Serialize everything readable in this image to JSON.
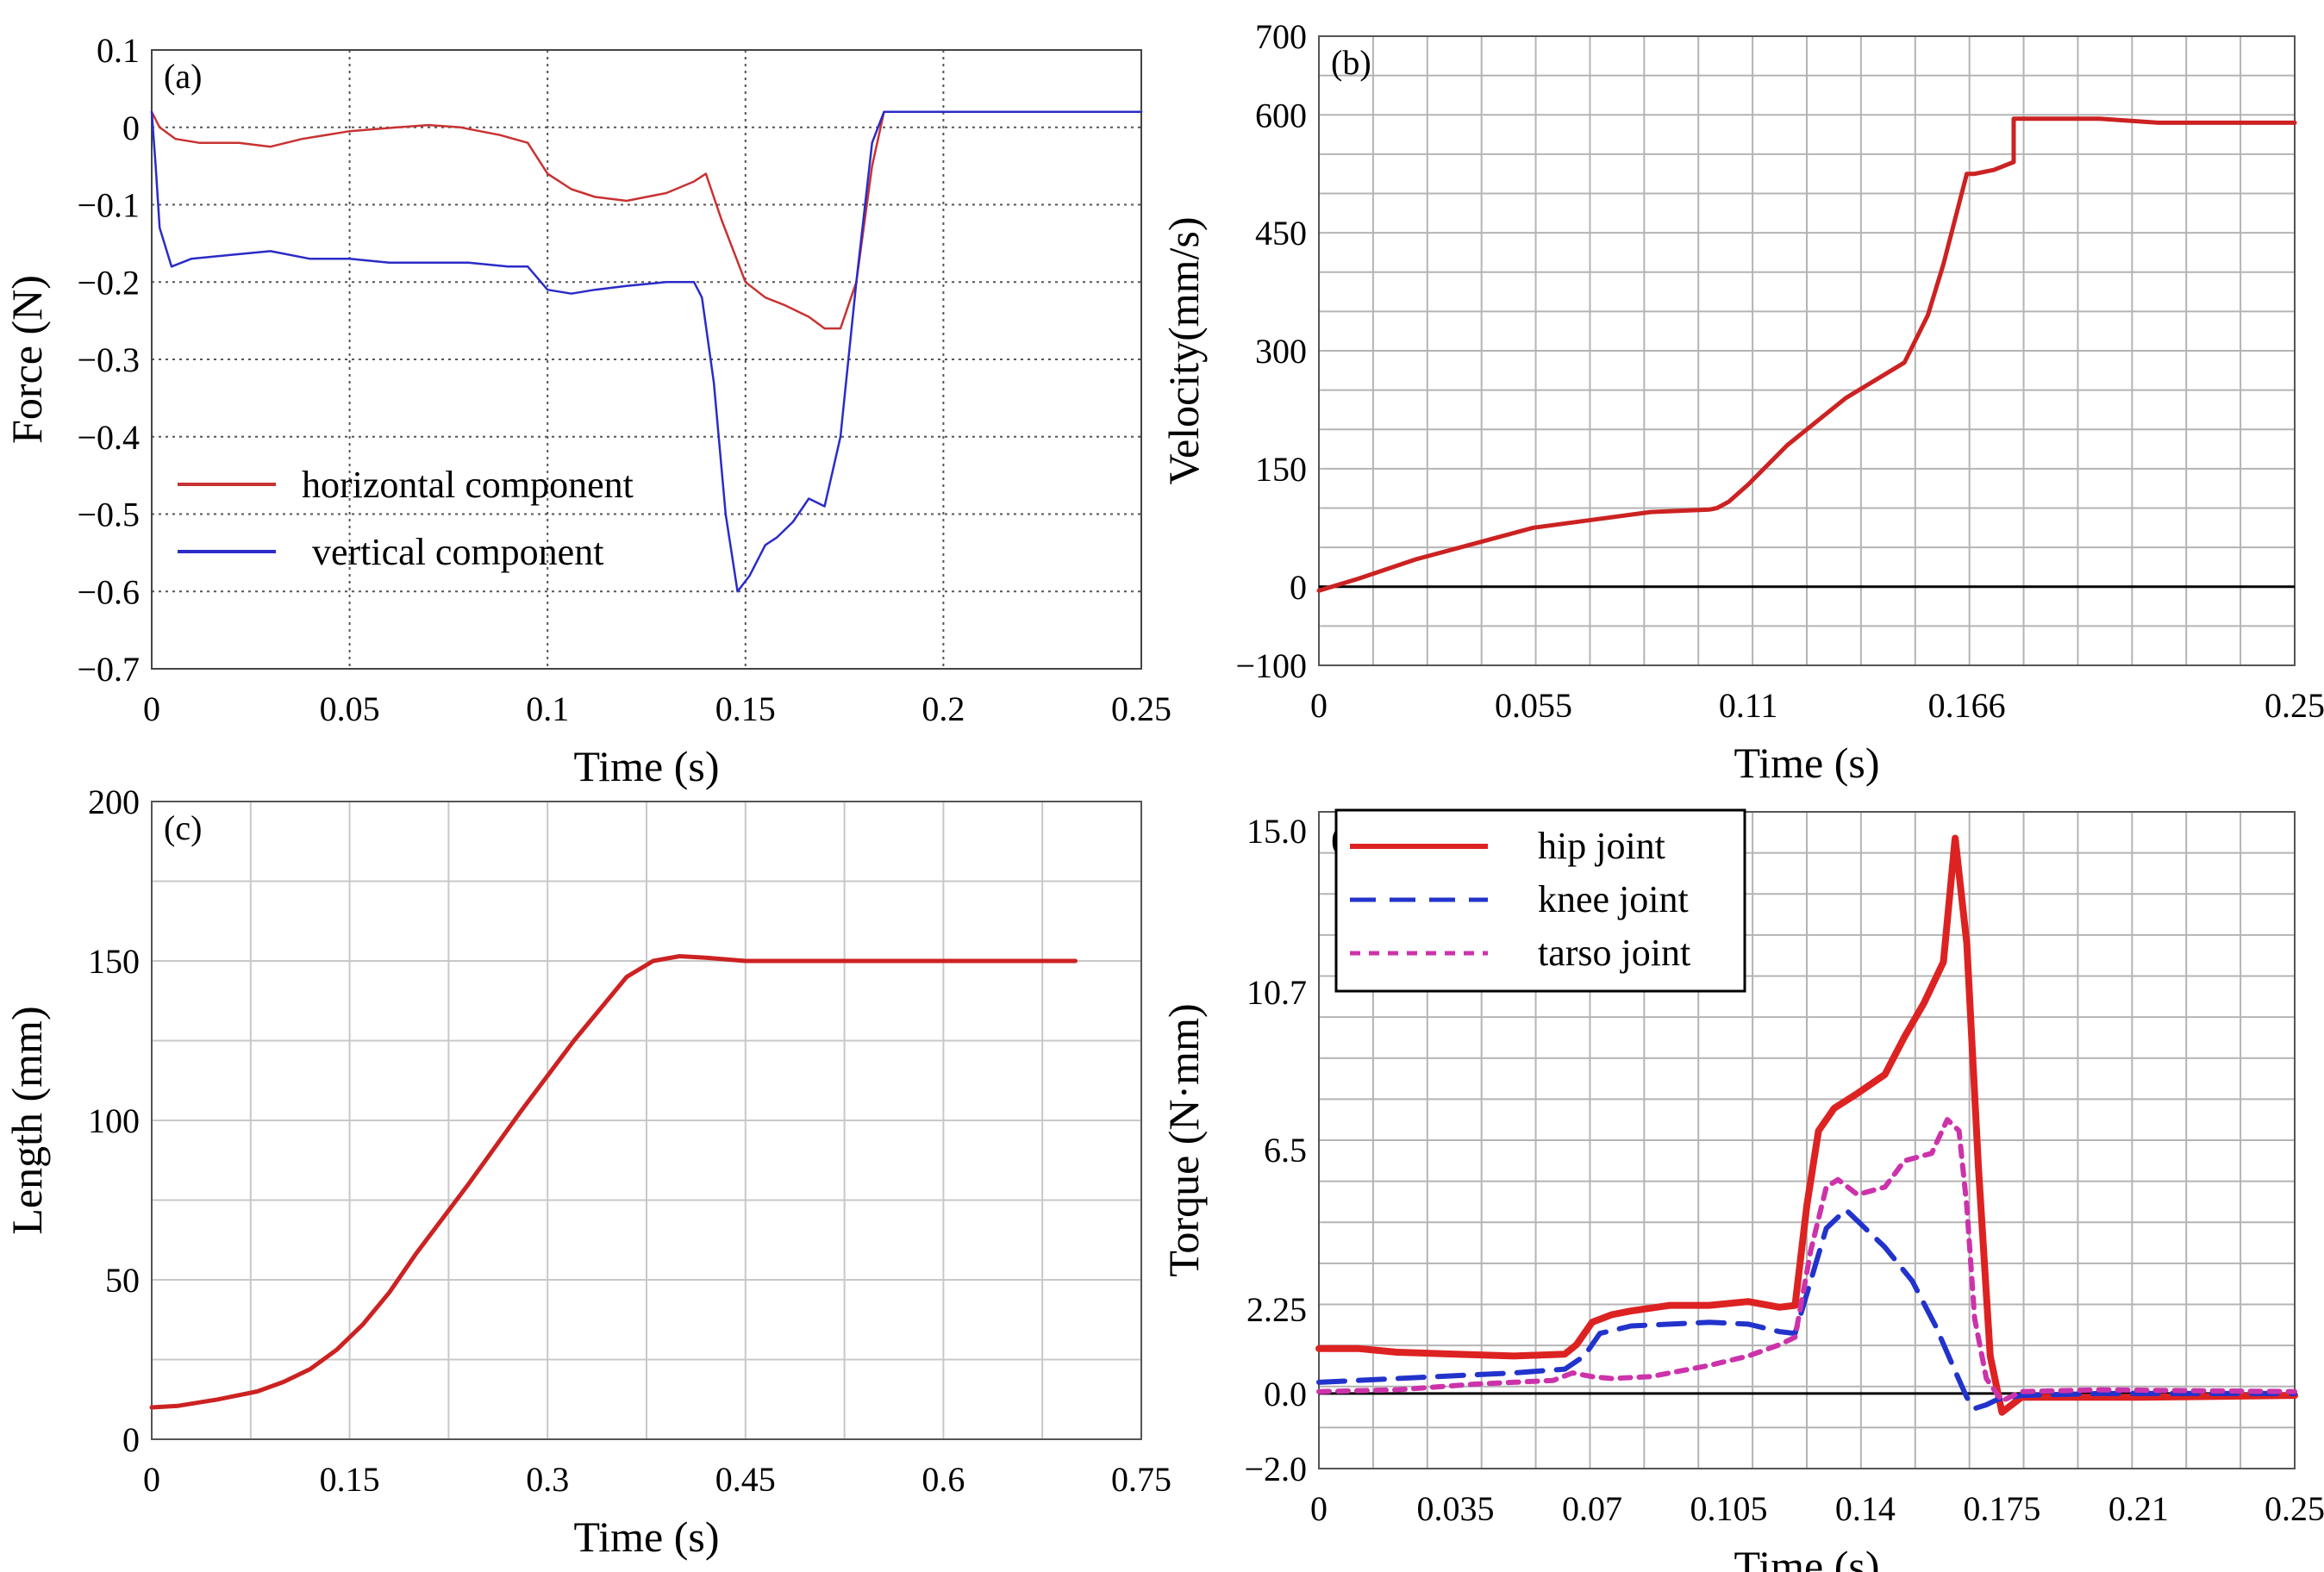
{
  "chart_data": [
    {
      "id": "a",
      "type": "line",
      "panel_label": "(a)",
      "xlabel": "Time (s)",
      "ylabel": "Force (N)",
      "xlim": [
        0,
        0.25
      ],
      "ylim": [
        -0.7,
        0.1
      ],
      "xticks": [
        0,
        0.05,
        0.1,
        0.15,
        0.2,
        0.25
      ],
      "xtick_labels": [
        "0",
        "0.05",
        "0.1",
        "0.15",
        "0.2",
        "0.25"
      ],
      "yticks": [
        0.1,
        0,
        -0.1,
        -0.2,
        -0.3,
        -0.4,
        -0.5,
        -0.6,
        -0.7
      ],
      "ytick_labels": [
        "0.1",
        "0",
        "−0.1",
        "−0.2",
        "−0.3",
        "−0.4",
        "−0.5",
        "−0.6",
        "−0.7"
      ],
      "grid": "dotted",
      "legend": "bottom-left",
      "series": [
        {
          "name": "horizontal component",
          "color": "#c83232",
          "style": "solid",
          "x": [
            0,
            0.002,
            0.006,
            0.012,
            0.022,
            0.03,
            0.038,
            0.05,
            0.062,
            0.07,
            0.078,
            0.088,
            0.095,
            0.1,
            0.106,
            0.112,
            0.12,
            0.13,
            0.137,
            0.14,
            0.144,
            0.15,
            0.155,
            0.16,
            0.166,
            0.17,
            0.174,
            0.178,
            0.182,
            0.185,
            0.2,
            0.25
          ],
          "y": [
            0.02,
            0.0,
            -0.015,
            -0.02,
            -0.02,
            -0.025,
            -0.015,
            -0.005,
            0.0,
            0.003,
            0.0,
            -0.01,
            -0.02,
            -0.06,
            -0.08,
            -0.09,
            -0.095,
            -0.085,
            -0.07,
            -0.06,
            -0.12,
            -0.2,
            -0.22,
            -0.23,
            -0.245,
            -0.26,
            -0.26,
            -0.2,
            -0.05,
            0.02,
            0.02,
            0.02
          ]
        },
        {
          "name": "vertical component",
          "color": "#2b2bc8",
          "style": "solid",
          "x": [
            0,
            0.001,
            0.002,
            0.005,
            0.01,
            0.02,
            0.03,
            0.04,
            0.05,
            0.06,
            0.07,
            0.08,
            0.09,
            0.095,
            0.1,
            0.106,
            0.112,
            0.12,
            0.13,
            0.137,
            0.139,
            0.142,
            0.145,
            0.148,
            0.151,
            0.155,
            0.158,
            0.162,
            0.166,
            0.17,
            0.174,
            0.178,
            0.182,
            0.185,
            0.2,
            0.25
          ],
          "y": [
            0.02,
            -0.05,
            -0.13,
            -0.18,
            -0.17,
            -0.165,
            -0.16,
            -0.17,
            -0.17,
            -0.175,
            -0.175,
            -0.175,
            -0.18,
            -0.18,
            -0.21,
            -0.215,
            -0.21,
            -0.205,
            -0.2,
            -0.2,
            -0.22,
            -0.33,
            -0.5,
            -0.6,
            -0.58,
            -0.54,
            -0.53,
            -0.51,
            -0.48,
            -0.49,
            -0.4,
            -0.2,
            -0.02,
            0.02,
            0.02,
            0.02
          ]
        }
      ]
    },
    {
      "id": "b",
      "type": "line",
      "panel_label": "(b)",
      "xlabel": "Time (s)",
      "ylabel": "Velocity(mm/s)",
      "xlim": [
        0,
        0.25
      ],
      "ylim": [
        -100,
        700
      ],
      "xticks": [
        0,
        0.055,
        0.11,
        0.166,
        0.25
      ],
      "xtick_labels": [
        "0",
        "0.055",
        "0.11",
        "0.166",
        "0.25"
      ],
      "yticks": [
        -100,
        0,
        150,
        300,
        450,
        600,
        700
      ],
      "ytick_labels": [
        "−100",
        "0",
        "150",
        "300",
        "450",
        "600",
        "700"
      ],
      "grid": "solid",
      "series": [
        {
          "name": "velocity",
          "color": "#cc2222",
          "style": "solid",
          "x": [
            0,
            0.01,
            0.025,
            0.04,
            0.055,
            0.07,
            0.085,
            0.1,
            0.102,
            0.105,
            0.11,
            0.12,
            0.135,
            0.15,
            0.156,
            0.16,
            0.166,
            0.168,
            0.173,
            0.178,
            0.178,
            0.2,
            0.215,
            0.25
          ],
          "y": [
            -5,
            10,
            35,
            55,
            75,
            85,
            95,
            98,
            100,
            108,
            130,
            180,
            240,
            285,
            345,
            410,
            525,
            525,
            530,
            540,
            595,
            595,
            590,
            590
          ]
        }
      ]
    },
    {
      "id": "c",
      "type": "line",
      "panel_label": "(c)",
      "xlabel": "Time (s)",
      "ylabel": "Length (mm)",
      "xlim": [
        0,
        0.75
      ],
      "ylim": [
        0,
        200
      ],
      "xticks": [
        0,
        0.15,
        0.3,
        0.45,
        0.6,
        0.75
      ],
      "xtick_labels": [
        "0",
        "0.15",
        "0.3",
        "0.45",
        "0.6",
        "0.75"
      ],
      "yticks": [
        0,
        50,
        100,
        150,
        200
      ],
      "ytick_labels": [
        "0",
        "50",
        "100",
        "150",
        "200"
      ],
      "grid": "solid",
      "series": [
        {
          "name": "length",
          "color": "#cc2222",
          "style": "solid",
          "x": [
            0,
            0.02,
            0.05,
            0.08,
            0.1,
            0.12,
            0.14,
            0.16,
            0.18,
            0.2,
            0.24,
            0.28,
            0.32,
            0.36,
            0.38,
            0.4,
            0.42,
            0.45,
            0.5,
            0.6,
            0.7
          ],
          "y": [
            10,
            10.5,
            12.5,
            15,
            18,
            22,
            28,
            36,
            46,
            58,
            80,
            103,
            125,
            145,
            150,
            151.5,
            151,
            150,
            150,
            150,
            150
          ]
        }
      ]
    },
    {
      "id": "d",
      "type": "line",
      "panel_label": "(d)",
      "xlabel": "Time (s)",
      "ylabel": "Torque (N·mm)",
      "xlim": [
        0,
        0.25
      ],
      "ylim": [
        -2.0,
        15.5
      ],
      "xticks": [
        0,
        0.035,
        0.07,
        0.105,
        0.14,
        0.175,
        0.21,
        0.25
      ],
      "xtick_labels": [
        "0",
        "0.035",
        "0.07",
        "0.105",
        "0.14",
        "0.175",
        "0.21",
        "0.25"
      ],
      "yticks": [
        -2.0,
        0.0,
        2.25,
        6.5,
        10.7,
        15.0
      ],
      "ytick_labels": [
        "−2.0",
        "0.0",
        "2.25",
        "6.5",
        "10.7",
        "15.0"
      ],
      "grid": "solid",
      "legend": "top-left",
      "series": [
        {
          "name": "hip joint",
          "color": "#dd2222",
          "style": "solid",
          "x": [
            0,
            0.01,
            0.02,
            0.035,
            0.05,
            0.063,
            0.066,
            0.07,
            0.075,
            0.08,
            0.09,
            0.1,
            0.11,
            0.118,
            0.122,
            0.125,
            0.128,
            0.132,
            0.138,
            0.145,
            0.15,
            0.155,
            0.16,
            0.163,
            0.166,
            0.169,
            0.172,
            0.175,
            0.18,
            0.19,
            0.2,
            0.21,
            0.25
          ],
          "y": [
            1.2,
            1.2,
            1.1,
            1.05,
            1.0,
            1.05,
            1.3,
            1.9,
            2.1,
            2.2,
            2.35,
            2.35,
            2.45,
            2.3,
            2.35,
            5.0,
            7.0,
            7.6,
            8.0,
            8.5,
            9.5,
            10.4,
            11.5,
            14.8,
            12.0,
            6.0,
            1.0,
            -0.5,
            -0.1,
            -0.1,
            -0.1,
            -0.1,
            -0.05
          ]
        },
        {
          "name": "knee joint",
          "color": "#2233cc",
          "style": "dashed",
          "x": [
            0,
            0.01,
            0.03,
            0.05,
            0.063,
            0.068,
            0.072,
            0.08,
            0.09,
            0.1,
            0.11,
            0.118,
            0.122,
            0.126,
            0.13,
            0.135,
            0.145,
            0.152,
            0.158,
            0.163,
            0.166,
            0.168,
            0.171,
            0.174,
            0.18,
            0.2,
            0.25
          ],
          "y": [
            0.3,
            0.35,
            0.45,
            0.55,
            0.65,
            1.0,
            1.6,
            1.8,
            1.85,
            1.9,
            1.85,
            1.65,
            1.6,
            3.0,
            4.4,
            4.9,
            3.9,
            3.0,
            1.8,
            0.6,
            -0.1,
            -0.4,
            -0.3,
            -0.15,
            -0.05,
            0.0,
            0.0
          ]
        },
        {
          "name": "tarso joint",
          "color": "#cc33aa",
          "style": "dashed",
          "x": [
            0,
            0.02,
            0.04,
            0.06,
            0.065,
            0.07,
            0.075,
            0.085,
            0.1,
            0.11,
            0.118,
            0.122,
            0.126,
            0.13,
            0.133,
            0.138,
            0.145,
            0.15,
            0.157,
            0.161,
            0.164,
            0.166,
            0.168,
            0.171,
            0.175,
            0.18,
            0.2,
            0.25
          ],
          "y": [
            0.05,
            0.1,
            0.25,
            0.35,
            0.55,
            0.45,
            0.4,
            0.45,
            0.75,
            1.0,
            1.3,
            1.5,
            3.8,
            5.5,
            5.7,
            5.3,
            5.5,
            6.2,
            6.4,
            7.3,
            7.0,
            5.0,
            2.0,
            0.4,
            -0.2,
            0.05,
            0.1,
            0.05
          ]
        }
      ]
    }
  ]
}
